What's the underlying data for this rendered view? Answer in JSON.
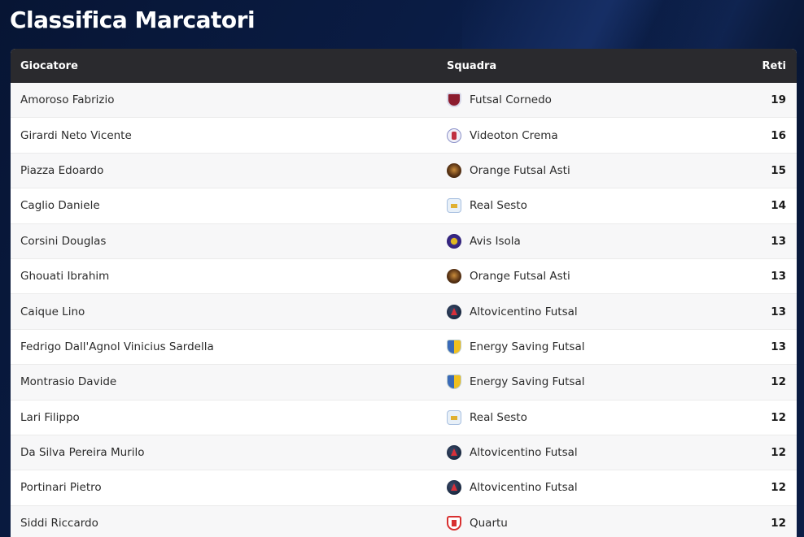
{
  "page": {
    "title": "Classifica Marcatori"
  },
  "table": {
    "headers": {
      "player": "Giocatore",
      "team": "Squadra",
      "goals": "Reti"
    },
    "rows": [
      {
        "player": "Amoroso Fabrizio",
        "team": "Futsal Cornedo",
        "logo": "cornedo",
        "goals": "19"
      },
      {
        "player": "Girardi Neto Vicente",
        "team": "Videoton Crema",
        "logo": "videoton",
        "goals": "16"
      },
      {
        "player": "Piazza Edoardo",
        "team": "Orange Futsal Asti",
        "logo": "orange",
        "goals": "15"
      },
      {
        "player": "Caglio Daniele",
        "team": "Real Sesto",
        "logo": "realsesto",
        "goals": "14"
      },
      {
        "player": "Corsini Douglas",
        "team": "Avis Isola",
        "logo": "avis",
        "goals": "13"
      },
      {
        "player": "Ghouati Ibrahim",
        "team": "Orange Futsal Asti",
        "logo": "orange",
        "goals": "13"
      },
      {
        "player": "Caique Lino",
        "team": "Altovicentino Futsal",
        "logo": "alto",
        "goals": "13"
      },
      {
        "player": "Fedrigo Dall'Agnol Vinicius Sardella",
        "team": "Energy Saving Futsal",
        "logo": "energy",
        "goals": "13"
      },
      {
        "player": "Montrasio Davide",
        "team": "Energy Saving Futsal",
        "logo": "energy",
        "goals": "12"
      },
      {
        "player": "Lari Filippo",
        "team": "Real Sesto",
        "logo": "realsesto",
        "goals": "12"
      },
      {
        "player": "Da Silva Pereira Murilo",
        "team": "Altovicentino Futsal",
        "logo": "alto",
        "goals": "12"
      },
      {
        "player": "Portinari Pietro",
        "team": "Altovicentino Futsal",
        "logo": "alto",
        "goals": "12"
      },
      {
        "player": "Siddi Riccardo",
        "team": "Quartu",
        "logo": "quartu",
        "goals": "12"
      }
    ]
  }
}
